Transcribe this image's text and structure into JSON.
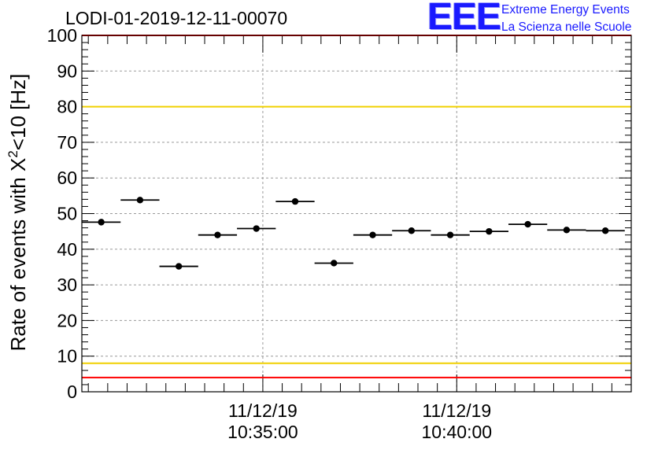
{
  "title": "LODI-01-2019-12-11-00070",
  "logo": {
    "mark": "EEE",
    "line1": "Extreme Energy Events",
    "line2": "La Scienza nelle Scuole"
  },
  "colors": {
    "points": "#000000",
    "limit_red": "#ff0000",
    "limit_yellow": "#f0d000",
    "grid": "#999999",
    "logo_blue": "#1a1aff"
  },
  "chart_data": {
    "type": "scatter",
    "title": "LODI-01-2019-12-11-00070",
    "xlabel": "",
    "ylabel": "Rate of events with X²<10 [Hz]",
    "ylabel_parts": {
      "pre": "Rate of events with X",
      "sup": "2",
      "post": "<10 [Hz]"
    },
    "ylim": [
      0,
      100
    ],
    "yticks": [
      0,
      10,
      20,
      30,
      40,
      50,
      60,
      70,
      80,
      90,
      100
    ],
    "x_range": [
      "10:30:20",
      "10:44:30"
    ],
    "xticks": [
      {
        "time": "10:35:00",
        "label_date": "11/12/19",
        "label_time": "10:35:00"
      },
      {
        "time": "10:40:00",
        "label_date": "11/12/19",
        "label_time": "10:40:00"
      }
    ],
    "grid": true,
    "bin_width": "00:01:00",
    "points": [
      {
        "x": "10:30:50",
        "y": 47.6
      },
      {
        "x": "10:31:50",
        "y": 53.8
      },
      {
        "x": "10:32:50",
        "y": 35.2
      },
      {
        "x": "10:33:50",
        "y": 44.0
      },
      {
        "x": "10:34:50",
        "y": 45.8
      },
      {
        "x": "10:35:50",
        "y": 53.4
      },
      {
        "x": "10:36:50",
        "y": 36.1
      },
      {
        "x": "10:37:50",
        "y": 44.0
      },
      {
        "x": "10:38:50",
        "y": 45.2
      },
      {
        "x": "10:39:50",
        "y": 44.0
      },
      {
        "x": "10:40:50",
        "y": 45.0
      },
      {
        "x": "10:41:50",
        "y": 47.0
      },
      {
        "x": "10:42:50",
        "y": 45.4
      },
      {
        "x": "10:43:50",
        "y": 45.2
      }
    ],
    "reference_lines": [
      {
        "y": 100,
        "color": "red"
      },
      {
        "y": 80,
        "color": "yellow"
      },
      {
        "y": 8,
        "color": "yellow"
      },
      {
        "y": 4,
        "color": "red"
      }
    ]
  }
}
